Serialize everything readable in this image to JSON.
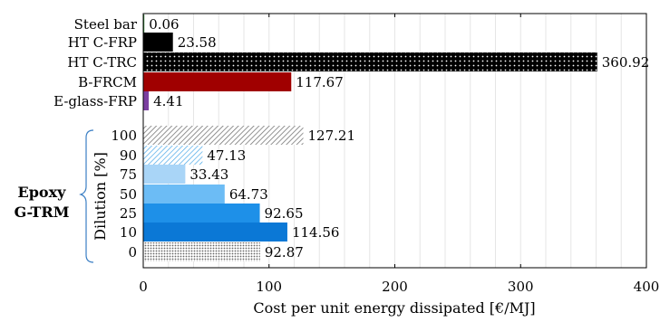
{
  "chart_data": {
    "type": "bar",
    "orientation": "horizontal",
    "xlabel": "Cost per unit energy dissipated [€/MJ]",
    "xlim": [
      0,
      400
    ],
    "xticks": [
      0,
      100,
      200,
      300,
      400
    ],
    "grid": true,
    "bars": [
      {
        "label": "Steel bar",
        "value": 0.06,
        "value_label": "0.06",
        "color": "#2e7d32",
        "pattern": "solid"
      },
      {
        "label": "HT C-FRP",
        "value": 23.58,
        "value_label": "23.58",
        "color": "#000000",
        "pattern": "solid"
      },
      {
        "label": "HT C-TRC",
        "value": 360.92,
        "value_label": "360.92",
        "color": "#000000",
        "pattern": "dots-white"
      },
      {
        "label": "B-FRCM",
        "value": 117.67,
        "value_label": "117.67",
        "color": "#a00000",
        "pattern": "solid"
      },
      {
        "label": "E-glass-FRP",
        "value": 4.41,
        "value_label": "4.41",
        "color": "#7b3fa0",
        "pattern": "solid"
      },
      {
        "label": "100",
        "value": 127.21,
        "value_label": "127.21",
        "color": "#8a8a8a",
        "pattern": "hatch"
      },
      {
        "label": "90",
        "value": 47.13,
        "value_label": "47.13",
        "color": "#4aa8e8",
        "pattern": "hatch-light"
      },
      {
        "label": "75",
        "value": 33.43,
        "value_label": "33.43",
        "color": "#a9d5f7",
        "pattern": "solid"
      },
      {
        "label": "50",
        "value": 64.73,
        "value_label": "64.73",
        "color": "#6cbcf5",
        "pattern": "solid"
      },
      {
        "label": "25",
        "value": 92.65,
        "value_label": "92.65",
        "color": "#1e90e8",
        "pattern": "solid"
      },
      {
        "label": "10",
        "value": 114.56,
        "value_label": "114.56",
        "color": "#0b78d6",
        "pattern": "solid"
      },
      {
        "label": "0",
        "value": 92.87,
        "value_label": "92.87",
        "color": "#777777",
        "pattern": "dots-gray"
      }
    ],
    "group": {
      "title_line1": "Epoxy",
      "title_line2": "G-TRM",
      "axis_label": "Dilution [%]",
      "brace_color": "#3b7fc4"
    }
  }
}
